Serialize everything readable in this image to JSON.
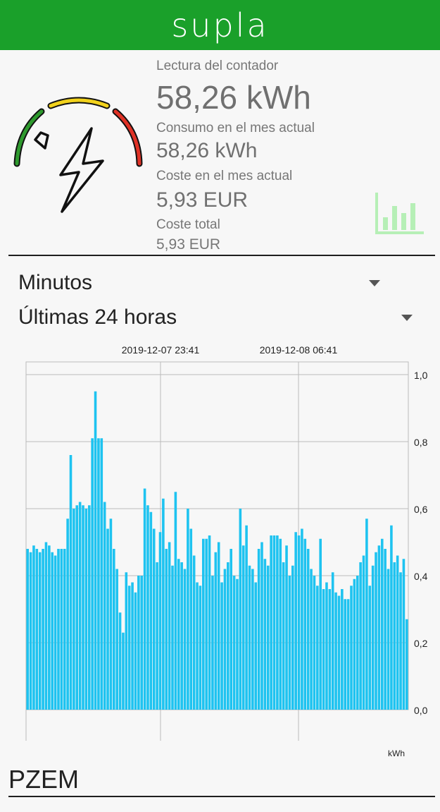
{
  "app": {
    "logo_text": "supla",
    "header_color": "#1aa02a"
  },
  "meter": {
    "icon": "electricity-meter-gauge-icon",
    "reading_label": "Lectura del contador",
    "reading_value": "58,26 kWh",
    "month_consumption_label": "Consumo en el mes actual",
    "month_consumption_value": "58,26 kWh",
    "month_cost_label": "Coste en el mes actual",
    "month_cost_value": "5,93 EUR",
    "total_cost_label": "Coste total",
    "total_cost_value": "5,93 EUR",
    "stats_icon": "bar-chart-icon"
  },
  "filters": {
    "interval": {
      "selected": "Minutos"
    },
    "range": {
      "selected": "Últimas 24 horas"
    }
  },
  "chart_data": {
    "type": "bar",
    "x_labels": [
      "2019-12-07 23:41",
      "2019-12-08 06:41"
    ],
    "unit_label": "kWh",
    "y_ticks": [
      "1,0",
      "0,8",
      "0,6",
      "0,4",
      "0,2",
      "0,0"
    ],
    "ylim": [
      0,
      1.0
    ],
    "grid": true,
    "bar_color": "#1ec3f0",
    "values": [
      0.48,
      0.47,
      0.49,
      0.48,
      0.47,
      0.48,
      0.5,
      0.49,
      0.47,
      0.46,
      0.48,
      0.48,
      0.48,
      0.57,
      0.76,
      0.6,
      0.61,
      0.62,
      0.61,
      0.6,
      0.61,
      0.81,
      0.95,
      0.81,
      0.81,
      0.62,
      0.54,
      0.57,
      0.48,
      0.42,
      0.29,
      0.23,
      0.41,
      0.37,
      0.38,
      0.35,
      0.4,
      0.4,
      0.66,
      0.61,
      0.59,
      0.54,
      0.44,
      0.53,
      0.63,
      0.48,
      0.5,
      0.43,
      0.65,
      0.45,
      0.44,
      0.42,
      0.6,
      0.54,
      0.46,
      0.38,
      0.37,
      0.51,
      0.51,
      0.52,
      0.4,
      0.47,
      0.5,
      0.38,
      0.42,
      0.44,
      0.48,
      0.4,
      0.39,
      0.6,
      0.49,
      0.55,
      0.43,
      0.42,
      0.38,
      0.48,
      0.5,
      0.45,
      0.43,
      0.52,
      0.52,
      0.52,
      0.51,
      0.44,
      0.49,
      0.4,
      0.43,
      0.53,
      0.52,
      0.54,
      0.51,
      0.48,
      0.42,
      0.4,
      0.37,
      0.51,
      0.36,
      0.38,
      0.36,
      0.41,
      0.35,
      0.34,
      0.36,
      0.33,
      0.33,
      0.37,
      0.39,
      0.4,
      0.44,
      0.46,
      0.57,
      0.37,
      0.43,
      0.47,
      0.49,
      0.51,
      0.48,
      0.42,
      0.55,
      0.44,
      0.46,
      0.41,
      0.45,
      0.27
    ]
  },
  "device": {
    "name": "PZEM"
  }
}
